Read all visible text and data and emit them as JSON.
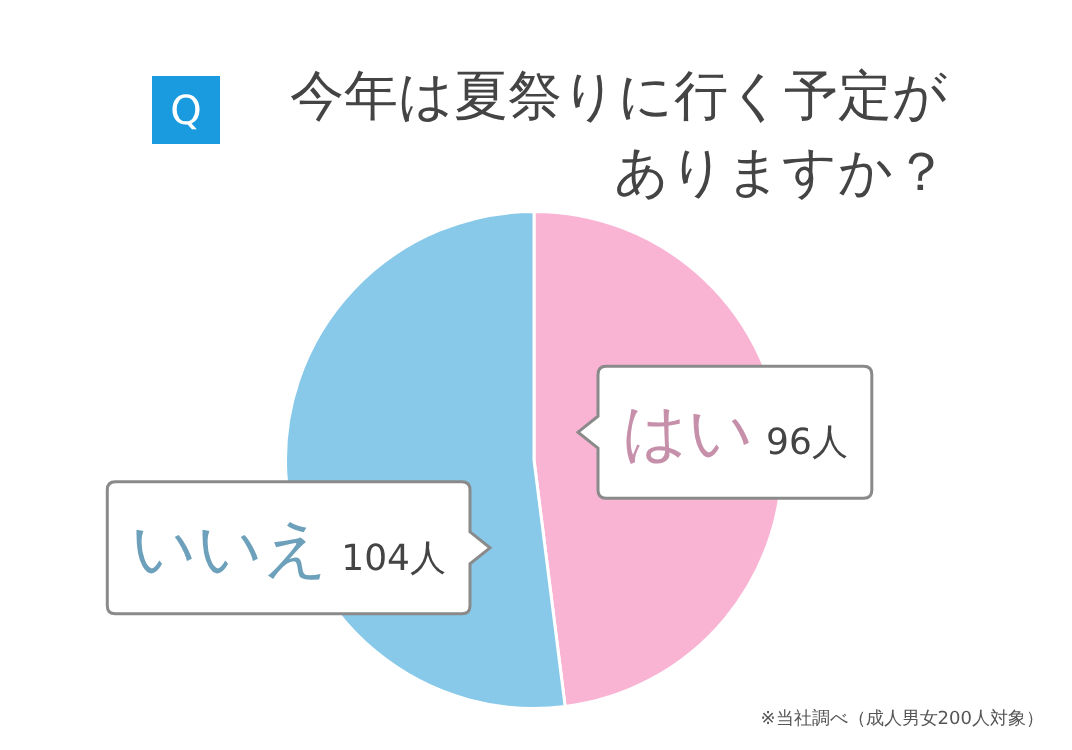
{
  "chart_data": {
    "type": "pie",
    "title": "今年は夏祭りに行く予定がありますか？",
    "categories": [
      "はい",
      "いいえ"
    ],
    "values": [
      96,
      104
    ],
    "value_labels": [
      "96人",
      "104人"
    ],
    "colors": [
      "#f9b4d4",
      "#88c9ea"
    ],
    "legend": false,
    "annotations": [
      "Q",
      "※当社調べ（成人男女200人対象）"
    ]
  }
}
